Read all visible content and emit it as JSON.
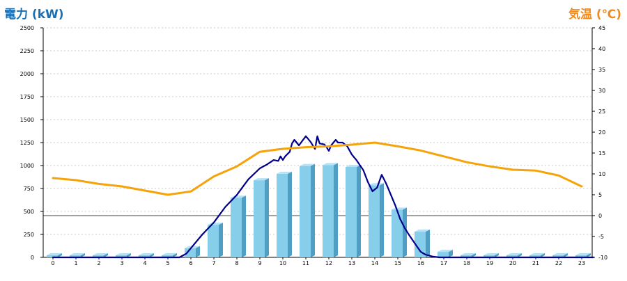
{
  "left_axis_title": "電力 (kW)",
  "right_axis_title": "気温 (℃)",
  "colors": {
    "bar_front": "#87ceeb",
    "bar_side": "#4f9fc4",
    "bar_top": "#b6e2f5",
    "power_line": "#00008b",
    "temp_line": "#f5a30a",
    "left_title": "#1a6fb3",
    "right_title": "#f08a1c"
  },
  "chart_data": {
    "type": "bar",
    "x_ticks": [
      "0",
      "1",
      "2",
      "3",
      "4",
      "5",
      "6",
      "7",
      "8",
      "9",
      "10",
      "11",
      "12",
      "13",
      "14",
      "15",
      "16",
      "17",
      "18",
      "19",
      "20",
      "21",
      "22",
      "23"
    ],
    "y_left": {
      "label": "電力 (kW)",
      "range": [
        0,
        2500
      ],
      "ticks": [
        "0",
        "250",
        "500",
        "750",
        "1000",
        "1250",
        "1500",
        "1750",
        "2000",
        "2250",
        "2500"
      ]
    },
    "y_right": {
      "label": "気温 (℃)",
      "range": [
        -10,
        45
      ],
      "ticks": [
        "-10",
        "-5",
        "0",
        "5",
        "10",
        "15",
        "20",
        "25",
        "30",
        "35",
        "40",
        "45"
      ]
    },
    "grid": true,
    "series": [
      {
        "kind": "bar",
        "axis": "left",
        "x": [
          0,
          1,
          2,
          3,
          4,
          5,
          6,
          7,
          8,
          9,
          10,
          11,
          12,
          13,
          14,
          15,
          16,
          17,
          18,
          19,
          20,
          21,
          22,
          23
        ],
        "values": [
          0,
          0,
          0,
          0,
          0,
          0,
          100,
          355,
          650,
          840,
          910,
          995,
          1005,
          985,
          785,
          520,
          280,
          60,
          0,
          0,
          0,
          0,
          0,
          0
        ]
      },
      {
        "kind": "line",
        "axis": "left",
        "points": [
          [
            0,
            0
          ],
          [
            5.5,
            0
          ],
          [
            5.8,
            40
          ],
          [
            6,
            100
          ],
          [
            6.5,
            250
          ],
          [
            7,
            380
          ],
          [
            7.5,
            550
          ],
          [
            8,
            680
          ],
          [
            8.5,
            850
          ],
          [
            9,
            970
          ],
          [
            9.3,
            1010
          ],
          [
            9.6,
            1060
          ],
          [
            9.8,
            1050
          ],
          [
            9.9,
            1100
          ],
          [
            10,
            1060
          ],
          [
            10.1,
            1100
          ],
          [
            10.3,
            1150
          ],
          [
            10.4,
            1240
          ],
          [
            10.5,
            1280
          ],
          [
            10.7,
            1220
          ],
          [
            11,
            1320
          ],
          [
            11.2,
            1260
          ],
          [
            11.4,
            1180
          ],
          [
            11.5,
            1320
          ],
          [
            11.6,
            1240
          ],
          [
            11.8,
            1230
          ],
          [
            11.9,
            1200
          ],
          [
            12,
            1160
          ],
          [
            12.1,
            1220
          ],
          [
            12.3,
            1280
          ],
          [
            12.4,
            1250
          ],
          [
            12.6,
            1250
          ],
          [
            12.8,
            1210
          ],
          [
            13,
            1120
          ],
          [
            13.2,
            1060
          ],
          [
            13.5,
            950
          ],
          [
            13.7,
            820
          ],
          [
            13.9,
            720
          ],
          [
            14.1,
            760
          ],
          [
            14.3,
            900
          ],
          [
            14.5,
            800
          ],
          [
            14.7,
            680
          ],
          [
            14.9,
            560
          ],
          [
            15.1,
            420
          ],
          [
            15.3,
            320
          ],
          [
            15.5,
            240
          ],
          [
            15.8,
            130
          ],
          [
            16,
            60
          ],
          [
            16.2,
            30
          ],
          [
            16.5,
            10
          ],
          [
            16.8,
            0
          ],
          [
            23.5,
            0
          ]
        ]
      },
      {
        "kind": "line",
        "axis": "right",
        "points": [
          [
            0,
            9
          ],
          [
            1,
            8.5
          ],
          [
            2,
            7.6
          ],
          [
            3,
            7
          ],
          [
            4,
            6
          ],
          [
            5,
            5
          ],
          [
            6,
            5.8
          ],
          [
            7,
            9.4
          ],
          [
            8,
            11.8
          ],
          [
            9,
            15.3
          ],
          [
            10,
            16
          ],
          [
            11,
            16.4
          ],
          [
            12,
            16.6
          ],
          [
            13,
            17
          ],
          [
            14,
            17.5
          ],
          [
            15,
            16.6
          ],
          [
            16,
            15.6
          ],
          [
            17,
            14.2
          ],
          [
            18,
            12.8
          ],
          [
            19,
            11.8
          ],
          [
            20,
            11
          ],
          [
            21,
            10.8
          ],
          [
            22,
            9.6
          ],
          [
            23,
            7
          ]
        ]
      }
    ]
  }
}
